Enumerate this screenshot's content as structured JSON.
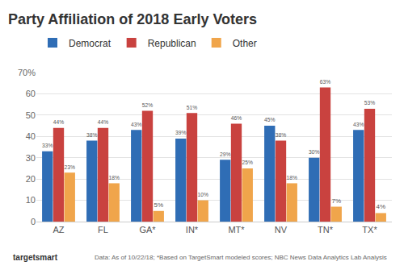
{
  "chart_data": {
    "type": "bar",
    "title": "Party Affiliation of 2018 Early Voters",
    "categories": [
      "AZ",
      "FL",
      "GA*",
      "IN*",
      "MT*",
      "NV",
      "TN*",
      "TX*"
    ],
    "series": [
      {
        "name": "Democrat",
        "color": "#2f6db5",
        "values": [
          33,
          38,
          43,
          39,
          29,
          45,
          30,
          43
        ],
        "value_labels": [
          "33%",
          "38%",
          "43%",
          "39%",
          "29%",
          "45%",
          "30%",
          "43%"
        ]
      },
      {
        "name": "Republican",
        "color": "#c9423f",
        "values": [
          44,
          44,
          52,
          51,
          46,
          38,
          63,
          53
        ],
        "value_labels": [
          "44%",
          "44%",
          "52%",
          "51%",
          "46%",
          "38%",
          "63%",
          "53%"
        ]
      },
      {
        "name": "Other",
        "color": "#f0a54b",
        "values": [
          23,
          18,
          5,
          10,
          25,
          18,
          7,
          4
        ],
        "value_labels": [
          "23%",
          "18%",
          "5%",
          "10%",
          "25%",
          "18%",
          "7%",
          "4%"
        ]
      }
    ],
    "ylim": [
      0,
      70
    ],
    "yticks": [
      0,
      10,
      20,
      30,
      40,
      50,
      60,
      {
        "value": 70,
        "label": "70%"
      }
    ],
    "grid": true,
    "legend": "top-left",
    "data_labels": true,
    "logo_text": "targetsmart",
    "footnote": "Data: As of 10/22/18; *Based on TargetSmart modeled scores; NBC News Data Analytics Lab Analysis"
  }
}
